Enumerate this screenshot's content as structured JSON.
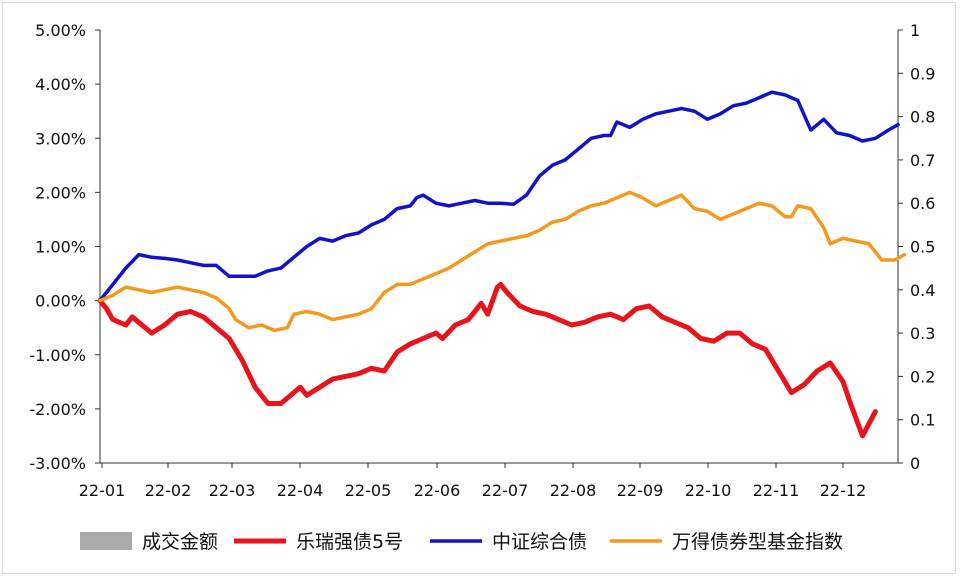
{
  "chart_data": {
    "type": "line",
    "title": "",
    "x_ticks": [
      "22-01",
      "22-02",
      "22-03",
      "22-04",
      "22-05",
      "22-06",
      "22-07",
      "22-08",
      "22-09",
      "22-10",
      "22-11",
      "22-12"
    ],
    "y_left": {
      "min": -0.03,
      "max": 0.05,
      "step": 0.01,
      "tick_labels": [
        "5.00%",
        "4.00%",
        "3.00%",
        "2.00%",
        "1.00%",
        "0.00%",
        "-1.00%",
        "-2.00%",
        "-3.00%"
      ]
    },
    "y_right": {
      "min": 0,
      "max": 1,
      "step": 0.1,
      "tick_labels": [
        "1",
        "0.9",
        "0.8",
        "0.7",
        "0.6",
        "0.5",
        "0.4",
        "0.3",
        "0.2",
        "0.1",
        "0"
      ]
    },
    "grid": false,
    "legend_position": "bottom",
    "series": [
      {
        "name": "成交金额",
        "axis": "right",
        "type": "bar",
        "color": "#aaaaaa",
        "values": []
      },
      {
        "name": "乐瑞强债5号",
        "axis": "left",
        "color": "#e8131b",
        "points": [
          [
            0,
            0.0
          ],
          [
            0.1,
            -0.15
          ],
          [
            0.2,
            -0.35
          ],
          [
            0.4,
            -0.45
          ],
          [
            0.5,
            -0.3
          ],
          [
            0.7,
            -0.5
          ],
          [
            0.8,
            -0.6
          ],
          [
            1.0,
            -0.45
          ],
          [
            1.2,
            -0.25
          ],
          [
            1.4,
            -0.2
          ],
          [
            1.6,
            -0.3
          ],
          [
            1.8,
            -0.5
          ],
          [
            2.0,
            -0.7
          ],
          [
            2.2,
            -1.1
          ],
          [
            2.4,
            -1.6
          ],
          [
            2.6,
            -1.9
          ],
          [
            2.8,
            -1.9
          ],
          [
            3.0,
            -1.7
          ],
          [
            3.1,
            -1.6
          ],
          [
            3.2,
            -1.75
          ],
          [
            3.4,
            -1.6
          ],
          [
            3.6,
            -1.45
          ],
          [
            3.8,
            -1.4
          ],
          [
            4.0,
            -1.35
          ],
          [
            4.2,
            -1.25
          ],
          [
            4.4,
            -1.3
          ],
          [
            4.6,
            -0.95
          ],
          [
            4.8,
            -0.8
          ],
          [
            5.0,
            -0.7
          ],
          [
            5.2,
            -0.6
          ],
          [
            5.3,
            -0.7
          ],
          [
            5.5,
            -0.45
          ],
          [
            5.7,
            -0.35
          ],
          [
            5.8,
            -0.2
          ],
          [
            5.9,
            -0.05
          ],
          [
            6.0,
            -0.25
          ],
          [
            6.15,
            0.25
          ],
          [
            6.2,
            0.3
          ],
          [
            6.3,
            0.15
          ],
          [
            6.5,
            -0.1
          ],
          [
            6.7,
            -0.2
          ],
          [
            6.9,
            -0.25
          ],
          [
            7.1,
            -0.35
          ],
          [
            7.3,
            -0.45
          ],
          [
            7.5,
            -0.4
          ],
          [
            7.7,
            -0.3
          ],
          [
            7.9,
            -0.25
          ],
          [
            8.1,
            -0.35
          ],
          [
            8.3,
            -0.15
          ],
          [
            8.5,
            -0.1
          ],
          [
            8.7,
            -0.3
          ],
          [
            8.9,
            -0.4
          ],
          [
            9.1,
            -0.5
          ],
          [
            9.3,
            -0.7
          ],
          [
            9.5,
            -0.75
          ],
          [
            9.7,
            -0.6
          ],
          [
            9.9,
            -0.6
          ],
          [
            10.1,
            -0.8
          ],
          [
            10.3,
            -0.9
          ],
          [
            10.5,
            -1.3
          ],
          [
            10.7,
            -1.7
          ],
          [
            10.9,
            -1.55
          ],
          [
            11.1,
            -1.3
          ],
          [
            11.3,
            -1.15
          ],
          [
            11.5,
            -1.5
          ],
          [
            11.6,
            -1.85
          ],
          [
            11.8,
            -2.5
          ],
          [
            12.0,
            -2.05
          ]
        ]
      },
      {
        "name": "中证综合债",
        "axis": "left",
        "color": "#1212c8",
        "points": [
          [
            0,
            0.0
          ],
          [
            0.2,
            0.3
          ],
          [
            0.4,
            0.6
          ],
          [
            0.6,
            0.85
          ],
          [
            0.8,
            0.8
          ],
          [
            1.0,
            0.78
          ],
          [
            1.2,
            0.75
          ],
          [
            1.4,
            0.7
          ],
          [
            1.6,
            0.65
          ],
          [
            1.8,
            0.65
          ],
          [
            1.9,
            0.55
          ],
          [
            2.0,
            0.45
          ],
          [
            2.2,
            0.45
          ],
          [
            2.4,
            0.45
          ],
          [
            2.6,
            0.55
          ],
          [
            2.8,
            0.6
          ],
          [
            3.0,
            0.8
          ],
          [
            3.2,
            1.0
          ],
          [
            3.4,
            1.15
          ],
          [
            3.6,
            1.1
          ],
          [
            3.8,
            1.2
          ],
          [
            4.0,
            1.25
          ],
          [
            4.2,
            1.4
          ],
          [
            4.4,
            1.5
          ],
          [
            4.6,
            1.7
          ],
          [
            4.8,
            1.75
          ],
          [
            4.9,
            1.9
          ],
          [
            5.0,
            1.95
          ],
          [
            5.2,
            1.8
          ],
          [
            5.4,
            1.75
          ],
          [
            5.6,
            1.8
          ],
          [
            5.8,
            1.85
          ],
          [
            6.0,
            1.8
          ],
          [
            6.2,
            1.8
          ],
          [
            6.4,
            1.78
          ],
          [
            6.6,
            1.95
          ],
          [
            6.8,
            2.3
          ],
          [
            7.0,
            2.5
          ],
          [
            7.2,
            2.6
          ],
          [
            7.4,
            2.8
          ],
          [
            7.6,
            3.0
          ],
          [
            7.8,
            3.05
          ],
          [
            7.9,
            3.05
          ],
          [
            8.0,
            3.3
          ],
          [
            8.2,
            3.2
          ],
          [
            8.4,
            3.35
          ],
          [
            8.6,
            3.45
          ],
          [
            8.8,
            3.5
          ],
          [
            9.0,
            3.55
          ],
          [
            9.2,
            3.5
          ],
          [
            9.4,
            3.35
          ],
          [
            9.6,
            3.45
          ],
          [
            9.8,
            3.6
          ],
          [
            10.0,
            3.65
          ],
          [
            10.2,
            3.75
          ],
          [
            10.4,
            3.85
          ],
          [
            10.6,
            3.8
          ],
          [
            10.8,
            3.7
          ],
          [
            11.0,
            3.15
          ],
          [
            11.2,
            3.35
          ],
          [
            11.4,
            3.1
          ],
          [
            11.6,
            3.05
          ],
          [
            11.8,
            2.95
          ],
          [
            12.0,
            3.0
          ],
          [
            12.2,
            3.15
          ],
          [
            12.35,
            3.25
          ]
        ]
      },
      {
        "name": "万得债券型基金指数",
        "axis": "left",
        "color": "#f39a1e",
        "points": [
          [
            0,
            0.0
          ],
          [
            0.2,
            0.1
          ],
          [
            0.4,
            0.25
          ],
          [
            0.6,
            0.2
          ],
          [
            0.8,
            0.15
          ],
          [
            1.0,
            0.2
          ],
          [
            1.2,
            0.25
          ],
          [
            1.4,
            0.2
          ],
          [
            1.6,
            0.15
          ],
          [
            1.8,
            0.05
          ],
          [
            2.0,
            -0.15
          ],
          [
            2.1,
            -0.35
          ],
          [
            2.3,
            -0.5
          ],
          [
            2.5,
            -0.45
          ],
          [
            2.7,
            -0.55
          ],
          [
            2.9,
            -0.5
          ],
          [
            3.0,
            -0.25
          ],
          [
            3.2,
            -0.2
          ],
          [
            3.4,
            -0.25
          ],
          [
            3.6,
            -0.35
          ],
          [
            3.8,
            -0.3
          ],
          [
            4.0,
            -0.25
          ],
          [
            4.2,
            -0.15
          ],
          [
            4.4,
            0.15
          ],
          [
            4.6,
            0.3
          ],
          [
            4.8,
            0.3
          ],
          [
            5.0,
            0.4
          ],
          [
            5.2,
            0.5
          ],
          [
            5.4,
            0.6
          ],
          [
            5.6,
            0.75
          ],
          [
            5.8,
            0.9
          ],
          [
            6.0,
            1.05
          ],
          [
            6.2,
            1.1
          ],
          [
            6.4,
            1.15
          ],
          [
            6.6,
            1.2
          ],
          [
            6.8,
            1.3
          ],
          [
            7.0,
            1.45
          ],
          [
            7.2,
            1.5
          ],
          [
            7.4,
            1.65
          ],
          [
            7.6,
            1.75
          ],
          [
            7.8,
            1.8
          ],
          [
            8.0,
            1.9
          ],
          [
            8.2,
            2.0
          ],
          [
            8.4,
            1.9
          ],
          [
            8.6,
            1.75
          ],
          [
            8.8,
            1.85
          ],
          [
            9.0,
            1.95
          ],
          [
            9.2,
            1.7
          ],
          [
            9.4,
            1.65
          ],
          [
            9.6,
            1.5
          ],
          [
            9.8,
            1.6
          ],
          [
            10.0,
            1.7
          ],
          [
            10.2,
            1.8
          ],
          [
            10.4,
            1.75
          ],
          [
            10.6,
            1.55
          ],
          [
            10.7,
            1.55
          ],
          [
            10.8,
            1.75
          ],
          [
            11.0,
            1.7
          ],
          [
            11.2,
            1.35
          ],
          [
            11.3,
            1.05
          ],
          [
            11.5,
            1.15
          ],
          [
            11.7,
            1.1
          ],
          [
            11.9,
            1.05
          ],
          [
            12.1,
            0.75
          ],
          [
            12.3,
            0.75
          ],
          [
            12.45,
            0.85
          ]
        ]
      }
    ]
  }
}
